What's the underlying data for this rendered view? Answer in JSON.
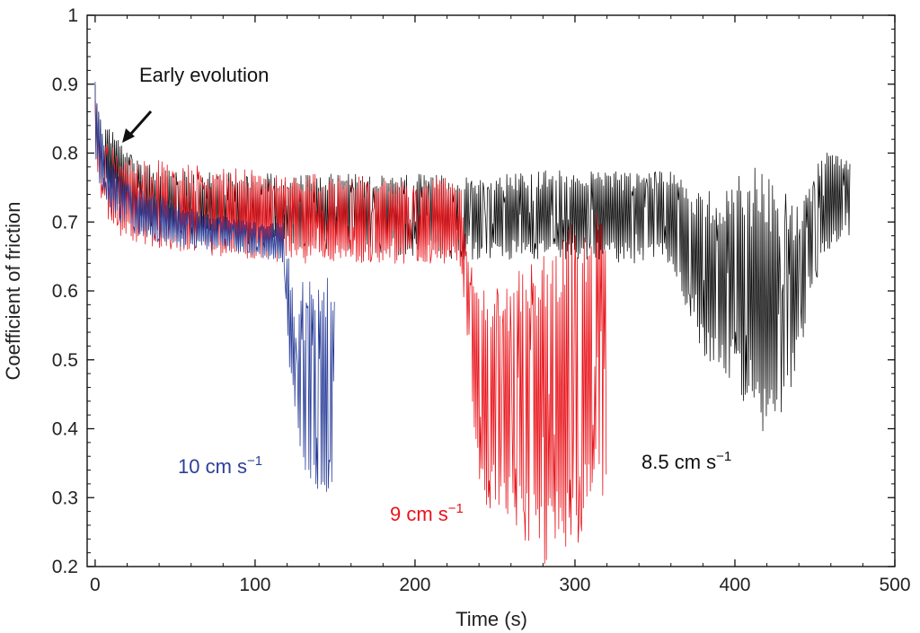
{
  "chart_data": {
    "type": "line",
    "xlabel": "Time (s)",
    "ylabel": "Coefficient of friction",
    "xlim": [
      -5,
      500
    ],
    "ylim": [
      0.2,
      1.0
    ],
    "xticks": [
      0,
      100,
      200,
      300,
      400,
      500
    ],
    "xtick_labels": [
      "0",
      "100",
      "200",
      "300",
      "400",
      "500"
    ],
    "yticks": [
      0.2,
      0.3,
      0.4,
      0.5,
      0.6,
      0.7,
      0.8,
      0.9,
      1.0
    ],
    "ytick_labels": [
      "0.2",
      "0.3",
      "0.4",
      "0.5",
      "0.6",
      "0.7",
      "0.8",
      "0.9",
      "1"
    ],
    "grid": false,
    "annotations": [
      {
        "text": "Early evolution",
        "x": 10,
        "y": 0.81,
        "arrow": true
      },
      {
        "text": "10 cm s",
        "superscript": "−1",
        "color": "#2b3f99"
      },
      {
        "text": "9 cm s",
        "superscript": "−1",
        "color": "#e8141b"
      },
      {
        "text": "8.5 cm s",
        "superscript": "−1",
        "color": "#111111"
      }
    ],
    "series": [
      {
        "color": "#111111",
        "envelope": {
          "x": [
            0,
            3,
            8,
            15,
            25,
            40,
            60,
            100,
            150,
            200,
            230,
            260,
            300,
            340,
            360,
            380,
            395,
            410,
            425,
            440,
            455,
            465,
            472
          ],
          "top": [
            0.9,
            0.87,
            0.84,
            0.82,
            0.79,
            0.78,
            0.775,
            0.77,
            0.77,
            0.77,
            0.765,
            0.77,
            0.78,
            0.77,
            0.78,
            0.74,
            0.76,
            0.8,
            0.76,
            0.72,
            0.8,
            0.81,
            0.79
          ],
          "bottom": [
            0.79,
            0.76,
            0.74,
            0.72,
            0.69,
            0.68,
            0.67,
            0.66,
            0.66,
            0.65,
            0.645,
            0.645,
            0.645,
            0.64,
            0.64,
            0.5,
            0.48,
            0.4,
            0.38,
            0.5,
            0.64,
            0.67,
            0.68
          ]
        }
      },
      {
        "color": "#e8141b",
        "envelope": {
          "x": [
            0,
            3,
            8,
            15,
            25,
            40,
            80,
            120,
            150,
            200,
            228,
            232,
            240,
            260,
            280,
            300,
            315,
            320
          ],
          "top": [
            0.9,
            0.85,
            0.82,
            0.8,
            0.79,
            0.79,
            0.78,
            0.77,
            0.77,
            0.76,
            0.77,
            0.66,
            0.6,
            0.62,
            0.66,
            0.7,
            0.72,
            0.7
          ],
          "bottom": [
            0.79,
            0.74,
            0.7,
            0.68,
            0.67,
            0.66,
            0.65,
            0.64,
            0.64,
            0.64,
            0.64,
            0.55,
            0.3,
            0.25,
            0.2,
            0.22,
            0.3,
            0.3
          ]
        }
      },
      {
        "color": "#2b3f99",
        "envelope": {
          "x": [
            0,
            3,
            8,
            15,
            25,
            40,
            60,
            80,
            100,
            118,
            122,
            126,
            130,
            140,
            145,
            150
          ],
          "top": [
            0.91,
            0.86,
            0.8,
            0.77,
            0.75,
            0.74,
            0.72,
            0.71,
            0.7,
            0.7,
            0.64,
            0.55,
            0.62,
            0.62,
            0.62,
            0.62
          ],
          "bottom": [
            0.8,
            0.75,
            0.72,
            0.7,
            0.68,
            0.67,
            0.66,
            0.66,
            0.65,
            0.64,
            0.45,
            0.4,
            0.35,
            0.27,
            0.28,
            0.28
          ]
        }
      }
    ]
  }
}
